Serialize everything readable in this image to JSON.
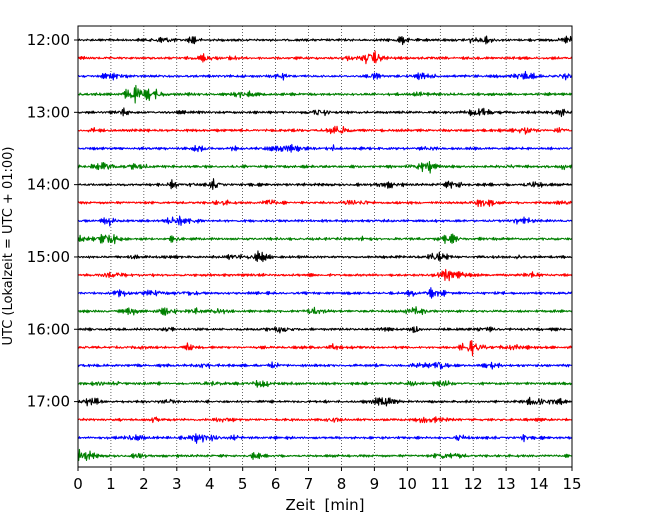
{
  "chart_data": {
    "type": "line",
    "title": "",
    "xlabel": "Zeit  [min]",
    "ylabel": "UTC (Lokalzeit = UTC + 01:00)",
    "xlim": [
      0,
      15
    ],
    "x_ticks": [
      "0",
      "1",
      "2",
      "3",
      "4",
      "5",
      "6",
      "7",
      "8",
      "9",
      "10",
      "11",
      "12",
      "13",
      "14",
      "15"
    ],
    "y_ticks": [
      "12:00",
      "13:00",
      "14:00",
      "15:00",
      "16:00",
      "17:00"
    ],
    "grid": "vertical dotted lines at each minute",
    "trace_colors": [
      "#000000",
      "#ff0000",
      "#0000ff",
      "#008000"
    ],
    "series": [
      {
        "start": "12:00"
      },
      {
        "start": "12:15"
      },
      {
        "start": "12:30"
      },
      {
        "start": "12:45"
      },
      {
        "start": "13:00"
      },
      {
        "start": "13:15"
      },
      {
        "start": "13:30"
      },
      {
        "start": "13:45"
      },
      {
        "start": "14:00"
      },
      {
        "start": "14:15"
      },
      {
        "start": "14:30"
      },
      {
        "start": "14:45"
      },
      {
        "start": "15:00"
      },
      {
        "start": "15:15"
      },
      {
        "start": "15:30"
      },
      {
        "start": "15:45"
      },
      {
        "start": "16:00"
      },
      {
        "start": "16:15"
      },
      {
        "start": "16:30"
      },
      {
        "start": "16:45"
      },
      {
        "start": "17:00"
      },
      {
        "start": "17:15"
      },
      {
        "start": "17:30"
      },
      {
        "start": "17:45"
      }
    ]
  }
}
